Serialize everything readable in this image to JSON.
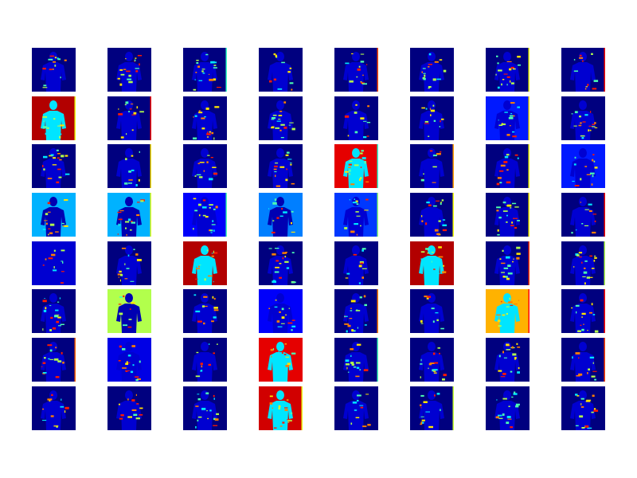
{
  "figure": {
    "rows": 8,
    "cols": 8,
    "colormap": [
      "#00007f",
      "#0000ff",
      "#007fff",
      "#00ffff",
      "#7fff7f",
      "#ffff00",
      "#ff7f00",
      "#ff0000",
      "#7f0000"
    ],
    "panel_background_levels": [
      [
        0.0,
        0.0,
        0.0,
        0.0,
        0.0,
        0.0,
        0.0,
        0.0
      ],
      [
        0.95,
        0.0,
        0.0,
        0.0,
        0.0,
        0.0,
        0.15,
        0.0
      ],
      [
        0.0,
        0.0,
        0.0,
        0.0,
        0.9,
        0.0,
        0.0,
        0.15
      ],
      [
        0.3,
        0.3,
        0.12,
        0.25,
        0.18,
        0.0,
        0.0,
        0.0
      ],
      [
        0.08,
        0.0,
        0.95,
        0.0,
        0.0,
        0.95,
        0.0,
        0.0
      ],
      [
        0.0,
        0.55,
        0.0,
        0.12,
        0.0,
        0.0,
        0.7,
        0.0
      ],
      [
        0.0,
        0.1,
        0.0,
        0.9,
        0.0,
        0.0,
        0.0,
        0.0
      ],
      [
        0.0,
        0.0,
        0.0,
        0.92,
        0.0,
        0.0,
        0.0,
        0.0
      ]
    ]
  }
}
